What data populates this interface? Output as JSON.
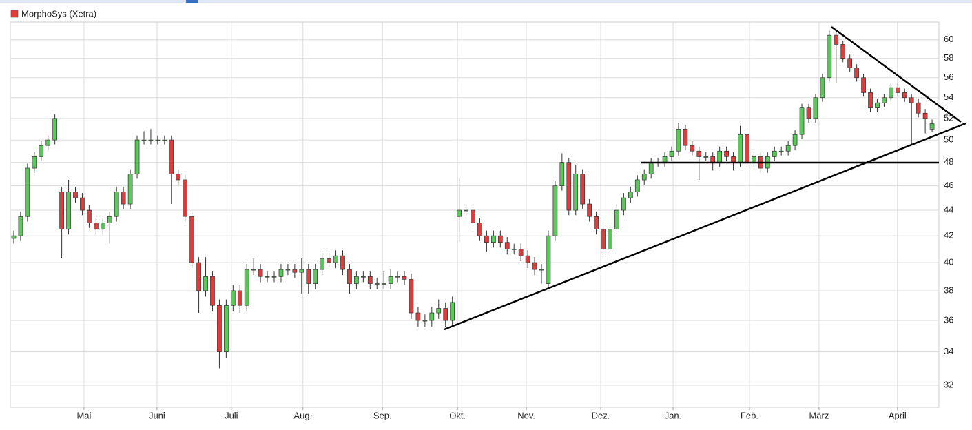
{
  "chart_data": {
    "type": "candlestick",
    "series_name": "MorphoSys (Xetra)",
    "legend_color": "#e03c3c",
    "up_color": "#5cc85c",
    "down_color": "#d84040",
    "log_scale": true,
    "grid": true,
    "xlim": [
      -1,
      270
    ],
    "ylim": [
      30.74,
      61.97
    ],
    "yticks": [
      32,
      34,
      36,
      38,
      40,
      42,
      44,
      46,
      48,
      50,
      52,
      54,
      56,
      58,
      60
    ],
    "xticks": [
      {
        "value": 20.5,
        "label": "Mai"
      },
      {
        "value": 41.8,
        "label": "Juni"
      },
      {
        "value": 63.5,
        "label": "Juli"
      },
      {
        "value": 84.4,
        "label": "Aug."
      },
      {
        "value": 107.6,
        "label": "Sep."
      },
      {
        "value": 129.5,
        "label": "Okt."
      },
      {
        "value": 149.6,
        "label": "Nov."
      },
      {
        "value": 171.3,
        "label": "Dez."
      },
      {
        "value": 192.4,
        "label": "Jan."
      },
      {
        "value": 214.7,
        "label": "Feb."
      },
      {
        "value": 235.0,
        "label": "März"
      },
      {
        "value": 257.9,
        "label": "April"
      }
    ],
    "x": [
      0,
      2,
      4,
      6,
      8,
      10,
      12,
      14,
      16,
      18,
      20,
      22,
      24,
      26,
      28,
      30,
      32,
      34,
      36,
      38,
      40,
      42,
      44,
      46,
      48,
      50,
      52,
      54,
      56,
      58,
      60,
      62,
      64,
      66,
      68,
      70,
      72,
      74,
      76,
      78,
      80,
      82,
      84,
      86,
      88,
      90,
      92,
      94,
      96,
      98,
      100,
      102,
      104,
      106,
      108,
      110,
      112,
      114,
      116,
      118,
      120,
      122,
      124,
      126,
      128,
      130,
      132,
      134,
      136,
      138,
      140,
      142,
      144,
      146,
      148,
      150,
      152,
      154,
      156,
      158,
      160,
      162,
      164,
      166,
      168,
      170,
      172,
      174,
      176,
      178,
      180,
      182,
      184,
      186,
      188,
      190,
      192,
      194,
      196,
      198,
      200,
      202,
      204,
      206,
      208,
      210,
      212,
      214,
      216,
      218,
      220,
      222,
      224,
      226,
      228,
      230,
      232,
      234,
      236,
      238,
      240,
      242,
      244,
      246,
      248,
      250,
      252,
      254,
      256,
      258,
      260,
      262,
      264,
      266,
      268
    ],
    "open": [
      41.8,
      42,
      43.5,
      47.5,
      48.5,
      49.5,
      50,
      45.5,
      42.5,
      45.5,
      45,
      44,
      43,
      42.5,
      43,
      43.5,
      45.5,
      44.5,
      47,
      50,
      50,
      50,
      50,
      50,
      47,
      46.5,
      43.5,
      40,
      38,
      39,
      37,
      34,
      37,
      38,
      37,
      39.5,
      39.5,
      39,
      39,
      39,
      39.5,
      39.5,
      39.3,
      39.5,
      38.5,
      39.5,
      40.3,
      40,
      40.5,
      39.5,
      38.5,
      39,
      39,
      38.5,
      38.5,
      38.5,
      39,
      39,
      38.8,
      36.5,
      36,
      36,
      36.5,
      36.8,
      36,
      43.5,
      44,
      44,
      43,
      42,
      41.5,
      42,
      41.5,
      41,
      41,
      40.5,
      40,
      39.5,
      38.5,
      42,
      46,
      48,
      44,
      47,
      44.5,
      43.5,
      42.5,
      41,
      42.5,
      44,
      45,
      45.5,
      46.5,
      47,
      48,
      48,
      48.5,
      49,
      51,
      49.5,
      49,
      48.5,
      48.5,
      48,
      49,
      48.5,
      48,
      50.5,
      48,
      48.5,
      47.5,
      48.5,
      49,
      49,
      49.5,
      50.5,
      53,
      52,
      54,
      56,
      60.5,
      59.5,
      58,
      57,
      56,
      54.5,
      53,
      53.5,
      54,
      55,
      54.5,
      54,
      53.5,
      52.5,
      51
    ],
    "high": [
      42.4,
      43.9,
      47.9,
      48.9,
      49.9,
      50.4,
      52.4,
      45.9,
      46.5,
      45.9,
      45.4,
      44.4,
      43.4,
      43.4,
      43.9,
      45.9,
      45.9,
      47.4,
      50.4,
      50.8,
      51,
      50.4,
      50.4,
      50.4,
      47.4,
      46.9,
      43.9,
      40.4,
      40.4,
      39.4,
      37.4,
      37.4,
      38.4,
      38.4,
      39.9,
      40.3,
      39.9,
      39.4,
      39.4,
      39.9,
      39.9,
      39.9,
      40.3,
      39.9,
      39.9,
      40.7,
      40.7,
      40.9,
      40.9,
      39.9,
      39.4,
      39.4,
      39.4,
      38.9,
      39.4,
      39.5,
      39.4,
      39.4,
      39.2,
      36.9,
      36.4,
      36.9,
      37.4,
      37.2,
      37.6,
      46.7,
      44.4,
      44.4,
      43.4,
      42.4,
      42.4,
      42.4,
      41.9,
      41.4,
      41.4,
      40.9,
      40.4,
      39.9,
      42.4,
      46.4,
      48.8,
      48.4,
      47.8,
      47.4,
      44.9,
      43.9,
      42.9,
      42.9,
      44.4,
      45.4,
      45.9,
      46.9,
      47.4,
      48.4,
      48.4,
      48.9,
      49.4,
      51.6,
      51.4,
      49.9,
      49.4,
      48.9,
      48.9,
      49.4,
      49.4,
      48.9,
      51.3,
      50.9,
      48.9,
      48.9,
      48.9,
      49.4,
      49.4,
      49.9,
      50.9,
      53.4,
      53.4,
      54.4,
      56.4,
      61,
      60.9,
      59.9,
      58.4,
      57.4,
      56.4,
      54.9,
      53.9,
      54.4,
      55.4,
      55.4,
      54.9,
      54.4,
      53.9,
      52.9,
      51.9
    ],
    "low": [
      41.4,
      41.6,
      43.1,
      47.1,
      48.1,
      49.1,
      49.6,
      40.3,
      42.1,
      44.6,
      43.6,
      42.6,
      42.1,
      42.1,
      41.4,
      43.1,
      44.1,
      44.1,
      46.6,
      49.6,
      49.6,
      49.6,
      49.6,
      44.5,
      46.1,
      43.1,
      39.6,
      36.5,
      37.6,
      36.6,
      33,
      33.6,
      36.6,
      36.5,
      36.6,
      39.1,
      38.6,
      38.6,
      38.6,
      38.6,
      39.1,
      38.9,
      37.8,
      37.8,
      38.1,
      39.1,
      39.6,
      39.6,
      39.1,
      37.8,
      38.1,
      38.6,
      38.1,
      38.1,
      38.1,
      38.1,
      38.6,
      38.4,
      36.1,
      35.6,
      35.6,
      35.6,
      36.1,
      35.6,
      35.6,
      41.5,
      43.6,
      42.6,
      41.6,
      40.8,
      41.1,
      41.1,
      40.6,
      40.6,
      40.1,
      39.6,
      39.1,
      38.5,
      38.1,
      41.6,
      45.6,
      43.6,
      43.6,
      44.1,
      43.1,
      42.1,
      40.3,
      40.6,
      42.1,
      43.6,
      44.6,
      45.1,
      46.1,
      46.6,
      47.6,
      47.6,
      48.1,
      48.6,
      49.1,
      48.6,
      46.5,
      48.1,
      47.3,
      47.6,
      48.1,
      47.3,
      47.6,
      47.6,
      47.6,
      47.1,
      47.1,
      48.1,
      48.6,
      48.6,
      49.1,
      50.1,
      51.6,
      51.6,
      53.6,
      55.6,
      55.5,
      57.6,
      56.6,
      55.6,
      54.1,
      52.6,
      52.6,
      53.1,
      53.6,
      54.1,
      53.6,
      49.6,
      52.1,
      50.6,
      50.7
    ],
    "close": [
      42,
      43.5,
      47.5,
      48.5,
      49.5,
      50,
      52,
      42.5,
      45.5,
      45,
      44,
      43,
      42.5,
      43,
      43.5,
      45.5,
      44.5,
      47,
      50,
      50,
      50,
      50,
      50,
      47,
      46.5,
      43.5,
      40,
      38,
      39,
      37,
      34,
      37,
      38,
      37,
      39.5,
      39.5,
      39,
      39,
      39,
      39.5,
      39.5,
      39.3,
      39.5,
      38.5,
      39.5,
      40.3,
      40,
      40.5,
      39.5,
      38.5,
      39,
      39,
      38.5,
      38.5,
      38.5,
      39,
      39,
      38.8,
      36.5,
      36,
      36,
      36.5,
      36.8,
      36,
      37.2,
      44,
      44,
      43,
      42,
      41.5,
      42,
      41.5,
      41,
      41,
      40.5,
      40,
      39.5,
      39.5,
      42,
      46,
      48,
      44,
      47,
      44.5,
      43.5,
      42.5,
      41,
      42.5,
      44,
      45,
      45.5,
      46.5,
      47,
      48,
      48,
      48.5,
      49,
      51,
      49.5,
      49,
      48.5,
      48.5,
      48,
      49,
      48.5,
      48,
      50.5,
      48,
      48.5,
      47.5,
      48.5,
      49,
      49,
      49.5,
      50.5,
      53,
      52,
      54,
      56,
      60.5,
      59.5,
      58,
      57,
      56,
      54.5,
      53,
      53.5,
      54,
      55,
      54.5,
      54,
      53.5,
      52.5,
      52,
      51.5
    ]
  }
}
